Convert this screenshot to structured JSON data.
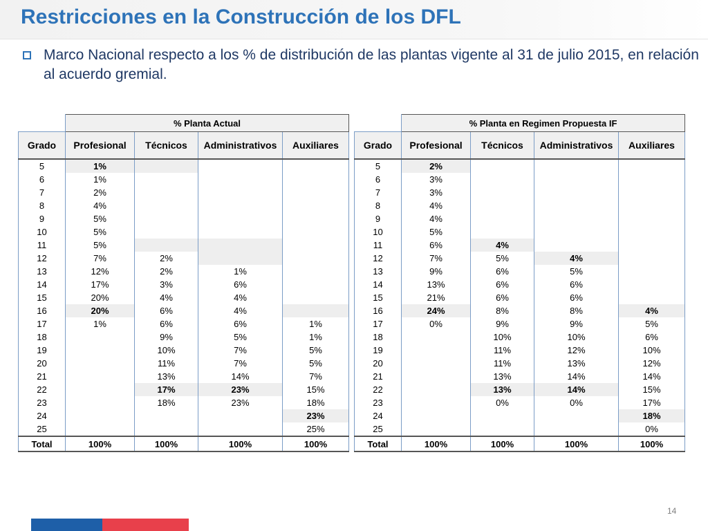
{
  "slide": {
    "title": "Restricciones en la Construcción de los DFL",
    "bullet": "Marco Nacional respecto a los % de distribución de las plantas vigente al 31 de julio 2015, en relación al acuerdo gremial.",
    "page_number": "14"
  },
  "tables": {
    "actual": {
      "group_title": "% Planta Actual",
      "headers": [
        "Grado",
        "Profesional",
        "Técnicos",
        "Administrativos",
        "Auxiliares"
      ],
      "rows": [
        [
          "5",
          "1%",
          "",
          "",
          ""
        ],
        [
          "6",
          "1%",
          "",
          "",
          ""
        ],
        [
          "7",
          "2%",
          "",
          "",
          ""
        ],
        [
          "8",
          "4%",
          "",
          "",
          ""
        ],
        [
          "9",
          "5%",
          "",
          "",
          ""
        ],
        [
          "10",
          "5%",
          "",
          "",
          ""
        ],
        [
          "11",
          "5%",
          "",
          "",
          ""
        ],
        [
          "12",
          "7%",
          "2%",
          "",
          ""
        ],
        [
          "13",
          "12%",
          "2%",
          "1%",
          ""
        ],
        [
          "14",
          "17%",
          "3%",
          "6%",
          ""
        ],
        [
          "15",
          "20%",
          "4%",
          "4%",
          ""
        ],
        [
          "16",
          "20%",
          "6%",
          "4%",
          ""
        ],
        [
          "17",
          "1%",
          "6%",
          "6%",
          "1%"
        ],
        [
          "18",
          "",
          "9%",
          "5%",
          "1%"
        ],
        [
          "19",
          "",
          "10%",
          "7%",
          "5%"
        ],
        [
          "20",
          "",
          "11%",
          "7%",
          "5%"
        ],
        [
          "21",
          "",
          "13%",
          "14%",
          "7%"
        ],
        [
          "22",
          "",
          "17%",
          "23%",
          "15%"
        ],
        [
          "23",
          "",
          "18%",
          "23%",
          "18%"
        ],
        [
          "24",
          "",
          "",
          "",
          "23%"
        ],
        [
          "25",
          "",
          "",
          "",
          "25%"
        ]
      ],
      "total": [
        "Total",
        "100%",
        "100%",
        "100%",
        "100%"
      ]
    },
    "propuesta": {
      "group_title": "% Planta en Regimen Propuesta IF",
      "headers": [
        "Grado",
        "Profesional",
        "Técnicos",
        "Administrativos",
        "Auxiliares"
      ],
      "rows": [
        [
          "5",
          "2%",
          "",
          "",
          ""
        ],
        [
          "6",
          "3%",
          "",
          "",
          ""
        ],
        [
          "7",
          "3%",
          "",
          "",
          ""
        ],
        [
          "8",
          "4%",
          "",
          "",
          ""
        ],
        [
          "9",
          "4%",
          "",
          "",
          ""
        ],
        [
          "10",
          "5%",
          "",
          "",
          ""
        ],
        [
          "11",
          "6%",
          "4%",
          "",
          ""
        ],
        [
          "12",
          "7%",
          "5%",
          "4%",
          ""
        ],
        [
          "13",
          "9%",
          "6%",
          "5%",
          ""
        ],
        [
          "14",
          "13%",
          "6%",
          "6%",
          ""
        ],
        [
          "15",
          "21%",
          "6%",
          "6%",
          ""
        ],
        [
          "16",
          "24%",
          "8%",
          "8%",
          "4%"
        ],
        [
          "17",
          "0%",
          "9%",
          "9%",
          "5%"
        ],
        [
          "18",
          "",
          "10%",
          "10%",
          "6%"
        ],
        [
          "19",
          "",
          "11%",
          "12%",
          "10%"
        ],
        [
          "20",
          "",
          "11%",
          "13%",
          "12%"
        ],
        [
          "21",
          "",
          "13%",
          "14%",
          "14%"
        ],
        [
          "22",
          "",
          "13%",
          "14%",
          "15%"
        ],
        [
          "23",
          "",
          "0%",
          "0%",
          "17%"
        ],
        [
          "24",
          "",
          "",
          "",
          "18%"
        ],
        [
          "25",
          "",
          "",
          "",
          "0%"
        ]
      ],
      "total": [
        "Total",
        "100%",
        "100%",
        "100%",
        "100%"
      ]
    }
  }
}
